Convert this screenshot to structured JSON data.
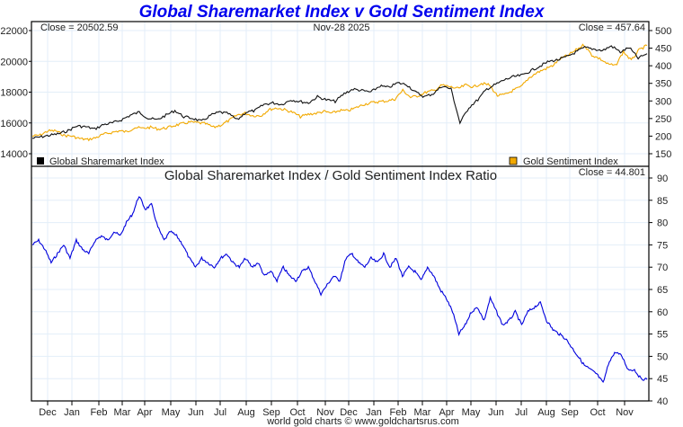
{
  "chart_data": [
    {
      "type": "line",
      "title": "Global Sharemarket Index v Gold Sentiment Index",
      "date_label": "Nov-28  2025",
      "close_left": "Close = 20502.59",
      "close_right": "Close = 457.64",
      "left_axis": {
        "ticks": [
          14000,
          16000,
          18000,
          20000,
          22000
        ],
        "range": [
          13000,
          22500
        ]
      },
      "right_axis": {
        "ticks": [
          150,
          200,
          250,
          300,
          350,
          400,
          450,
          500
        ],
        "range": [
          125,
          510
        ]
      },
      "x_months": [
        "Dec",
        "Jan",
        "Feb",
        "Mar",
        "Apr",
        "May",
        "Jun",
        "Jul",
        "Aug",
        "Sep",
        "Oct",
        "Nov",
        "Dec",
        "Jan",
        "Feb",
        "Mar",
        "Apr",
        "May",
        "Jun",
        "Jul",
        "Aug",
        "Sep",
        "Oct",
        "Nov"
      ],
      "legend": [
        {
          "name": "Global Sharemarket Index",
          "color": "#000000",
          "position": "bottom-left"
        },
        {
          "name": "Gold Sentiment Index",
          "color": "#f2a900",
          "position": "bottom-right"
        }
      ],
      "series": [
        {
          "name": "Global Sharemarket Index",
          "axis": "left",
          "color": "#111111",
          "values": [
            15000,
            15100,
            15200,
            15300,
            15500,
            15800,
            15750,
            15600,
            15900,
            16000,
            16200,
            16500,
            16700,
            16300,
            16200,
            16500,
            16800,
            16400,
            16300,
            16100,
            16500,
            16700,
            16600,
            16200,
            16700,
            16800,
            17200,
            17300,
            17200,
            17500,
            17400,
            17300,
            17700,
            17500,
            17400,
            17900,
            18200,
            18100,
            18000,
            18400,
            18300,
            18600,
            18500,
            18000,
            17700,
            17900,
            18400,
            18200,
            16000,
            17000,
            17500,
            18200,
            18500,
            18800,
            19000,
            19100,
            19400,
            19700,
            20000,
            20100,
            20300,
            20600,
            20900,
            20800,
            20700,
            21000,
            20600,
            20900,
            20200,
            20500
          ]
        },
        {
          "name": "Gold Sentiment Index",
          "axis": "left-scaled",
          "color": "#f2a900",
          "values": [
            200,
            203,
            215,
            215,
            202,
            200,
            193,
            190,
            195,
            205,
            210,
            215,
            212,
            225,
            222,
            225,
            220,
            223,
            230,
            235,
            240,
            238,
            235,
            225,
            232,
            245,
            260,
            265,
            258,
            258,
            275,
            280,
            275,
            268,
            255,
            262,
            265,
            270,
            265,
            273,
            272,
            280,
            290,
            295,
            298,
            300,
            305,
            330,
            310,
            315,
            325,
            330,
            345,
            340,
            335,
            345,
            340,
            350,
            345,
            315,
            318,
            330,
            340,
            365,
            380,
            390,
            400,
            420,
            430,
            445,
            460,
            430,
            420,
            405,
            400,
            440,
            415,
            445,
            457.64
          ]
        }
      ]
    },
    {
      "type": "line",
      "title": "Global Sharemarket Index  /  Gold Sentiment Index Ratio",
      "close": "Close = 44.801",
      "y_axis": {
        "ticks": [
          40,
          45,
          50,
          55,
          60,
          65,
          70,
          75,
          80,
          85,
          90
        ],
        "range": [
          40,
          91
        ]
      },
      "series": [
        {
          "name": "Ratio",
          "color": "#0000dd",
          "values": [
            75,
            76,
            74,
            71,
            73,
            75,
            72,
            76,
            74,
            73,
            76,
            77,
            76,
            78,
            77,
            80,
            82,
            86,
            83,
            84,
            79,
            76,
            78,
            77,
            75,
            72,
            70,
            72,
            71,
            70,
            72,
            73,
            71,
            70,
            72,
            70,
            71,
            68,
            69,
            67,
            70,
            68,
            67,
            69,
            70,
            67,
            64,
            66,
            68,
            67,
            72,
            73,
            71,
            70,
            72,
            71,
            73,
            70,
            72,
            68,
            70,
            69,
            67,
            70,
            68,
            65,
            63,
            60,
            55,
            57,
            60,
            61,
            58,
            63,
            60,
            57,
            58,
            60,
            57,
            60,
            61,
            62,
            58,
            56,
            55,
            54,
            52,
            50,
            48,
            47,
            46,
            44,
            49,
            51,
            50,
            47,
            47,
            45,
            44.8
          ]
        }
      ]
    }
  ],
  "footer": "world gold charts © www.goldchartsrus.com"
}
